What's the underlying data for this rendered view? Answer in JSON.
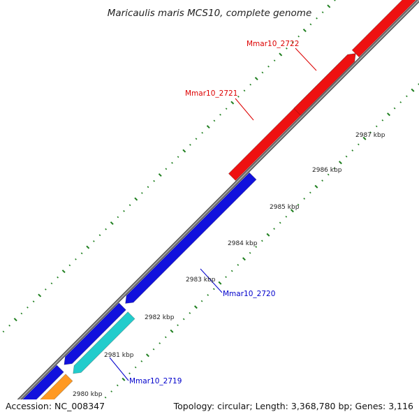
{
  "title": "Maricaulis maris MCS10, complete genome",
  "footer": {
    "accession": "Accession: NC_008347",
    "summary": "Topology: circular; Length: 3,368,780 bp; Genes: 3,116"
  },
  "colors": {
    "background": "#ffffff",
    "backbone": "#888888",
    "ticks": "#1f7f1f",
    "forward_gene": "#ee1111",
    "reverse_gene": "#1111dd",
    "cyan_gene": "#22cccc",
    "orange_gene": "#ff9922",
    "label_red": "#dd0000",
    "label_blue": "#0000cc"
  },
  "ticks": [
    {
      "label": "2980 kbp",
      "major": true
    },
    {
      "label": "2981 kbp",
      "major": true
    },
    {
      "label": "2982 kbp",
      "major": true
    },
    {
      "label": "2983 kbp",
      "major": true
    },
    {
      "label": "2984 kbp",
      "major": true
    },
    {
      "label": "2985 kbp",
      "major": true
    },
    {
      "label": "2986 kbp",
      "major": true
    },
    {
      "label": "2987 kbp",
      "major": true
    }
  ],
  "genes": [
    {
      "name": "Mmar10_2722",
      "labeled": true,
      "strand": "forward",
      "color": "red"
    },
    {
      "name": "Mmar10_2721",
      "labeled": true,
      "strand": "forward",
      "color": "red"
    },
    {
      "name": "Mmar10_2720",
      "labeled": true,
      "strand": "reverse",
      "color": "blue"
    },
    {
      "name": "Mmar10_2719",
      "labeled": true,
      "strand": "reverse",
      "color": "cyan"
    }
  ]
}
